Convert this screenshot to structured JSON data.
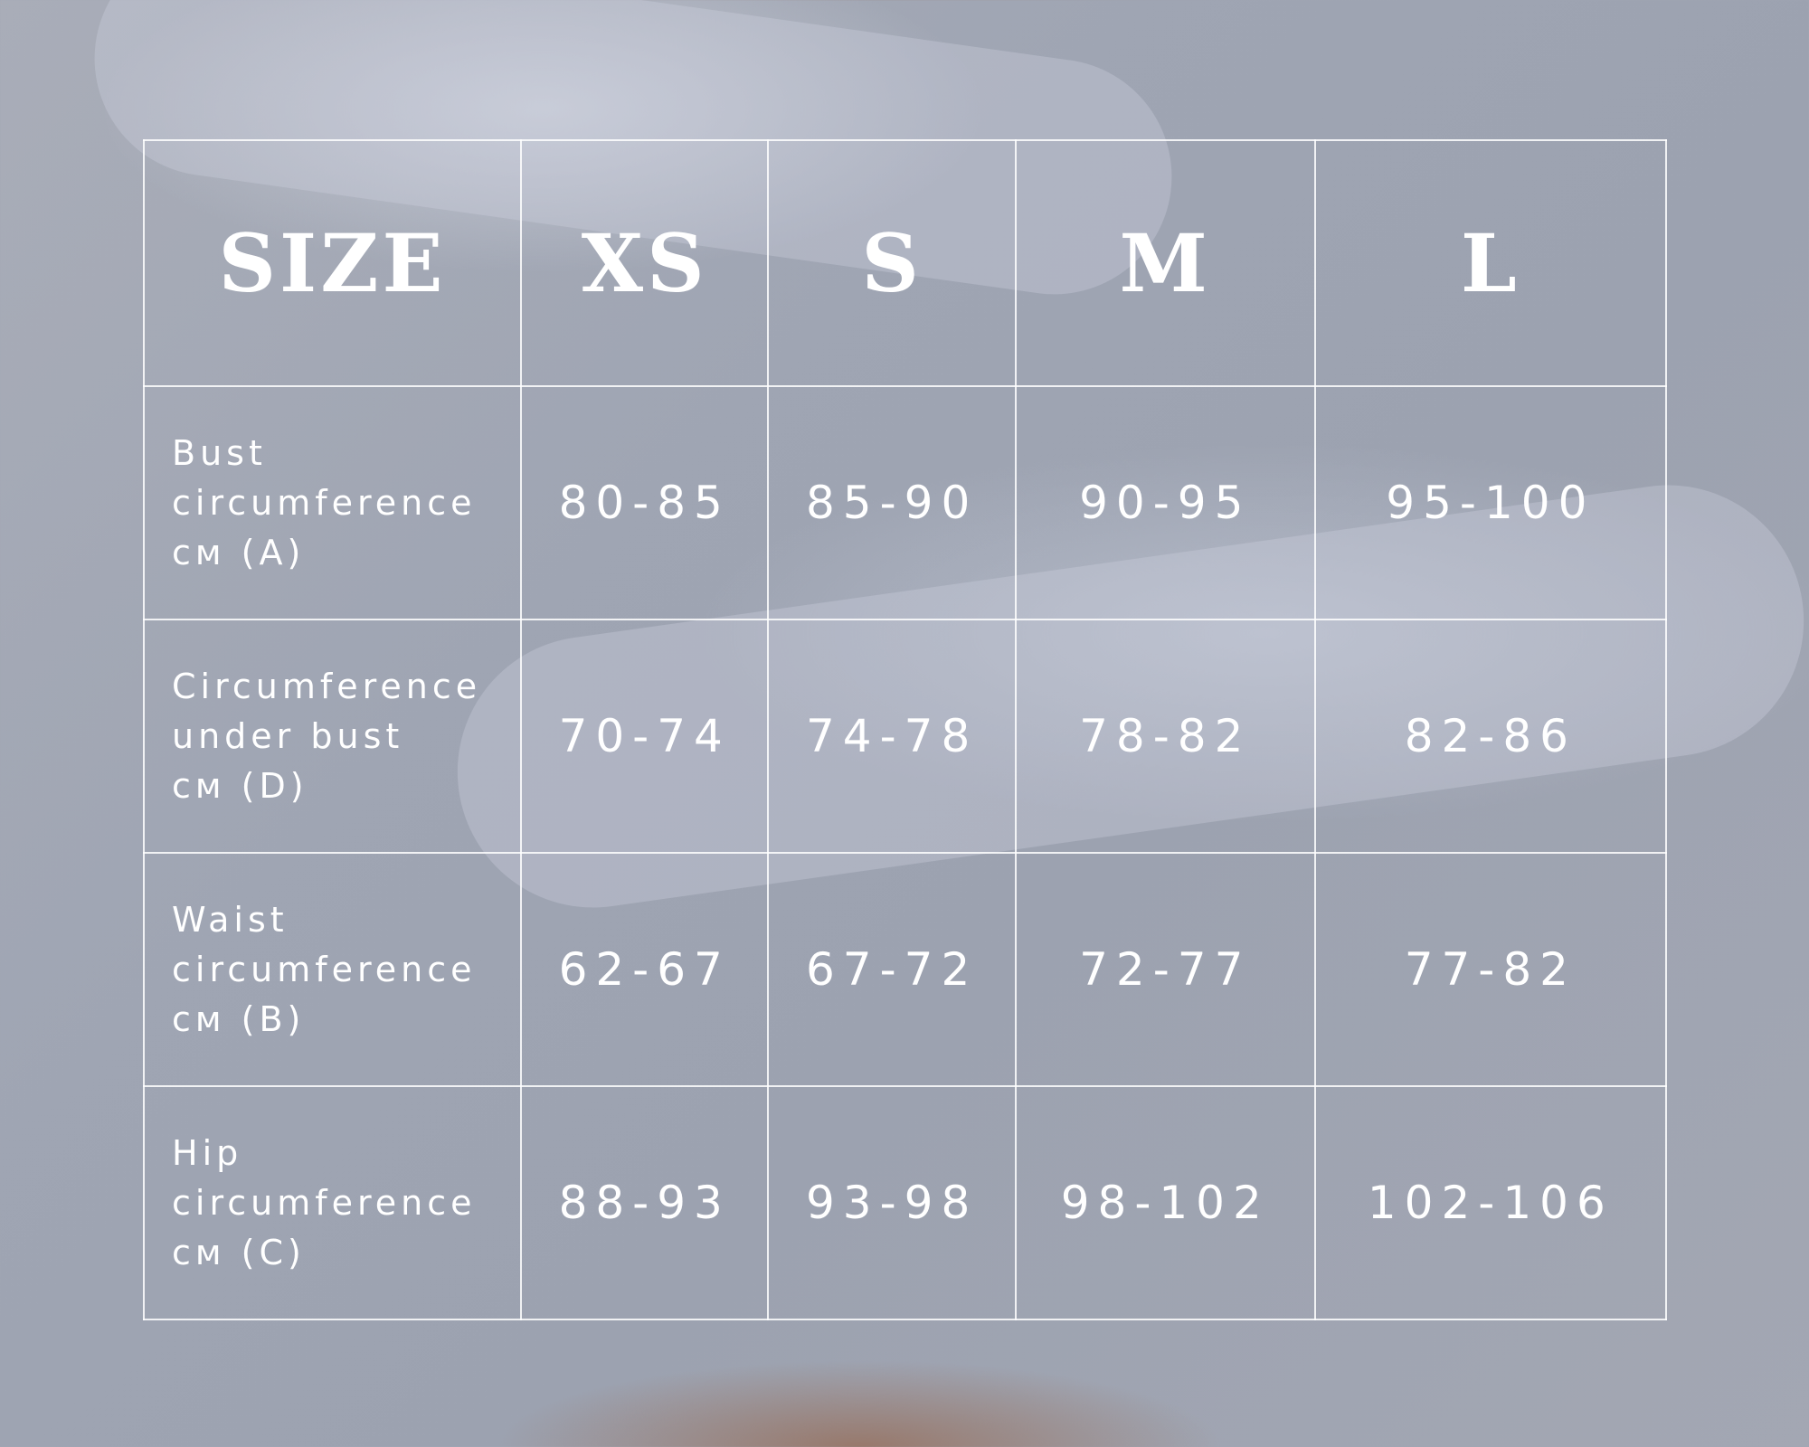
{
  "header": {
    "size_label": "SIZE",
    "sizes": [
      "XS",
      "S",
      "M",
      "L"
    ]
  },
  "rows": [
    {
      "label": [
        "Bust",
        "circumference",
        "см (A)"
      ],
      "values": [
        "80-85",
        "85-90",
        "90-95",
        "95-100"
      ]
    },
    {
      "label": [
        "Circumference",
        "under bust",
        "см (D)"
      ],
      "values": [
        "70-74",
        "74-78",
        "78-82",
        "82-86"
      ]
    },
    {
      "label": [
        "Waist",
        "circumference",
        "см (B)"
      ],
      "values": [
        "62-67",
        "67-72",
        "72-77",
        "77-82"
      ]
    },
    {
      "label": [
        "Hip",
        "circumference",
        "см (C)"
      ],
      "values": [
        "88-93",
        "93-98",
        "98-102",
        "102-106"
      ]
    }
  ]
}
